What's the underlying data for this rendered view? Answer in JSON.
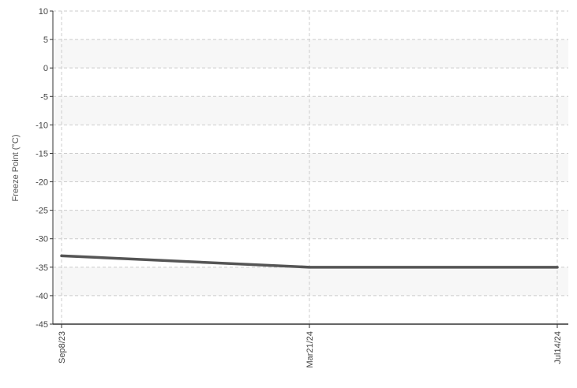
{
  "chart_data": {
    "type": "line",
    "title": "",
    "xlabel": "",
    "ylabel": "Freeze Point (°C)",
    "x": [
      "Sep8/23",
      "Mar21/24",
      "Jul14/24"
    ],
    "series": [
      {
        "values": [
          -33,
          -35,
          -35
        ]
      }
    ],
    "ylim": [
      -45,
      10
    ],
    "yticks": [
      10,
      5,
      0,
      -5,
      -10,
      -15,
      -20,
      -25,
      -30,
      -35,
      -40,
      -45
    ],
    "grid": true,
    "legend": "none",
    "colors": {
      "line": "#555555",
      "grid": "#cccccc",
      "band": "#f7f7f7",
      "axis": "#333333"
    }
  }
}
